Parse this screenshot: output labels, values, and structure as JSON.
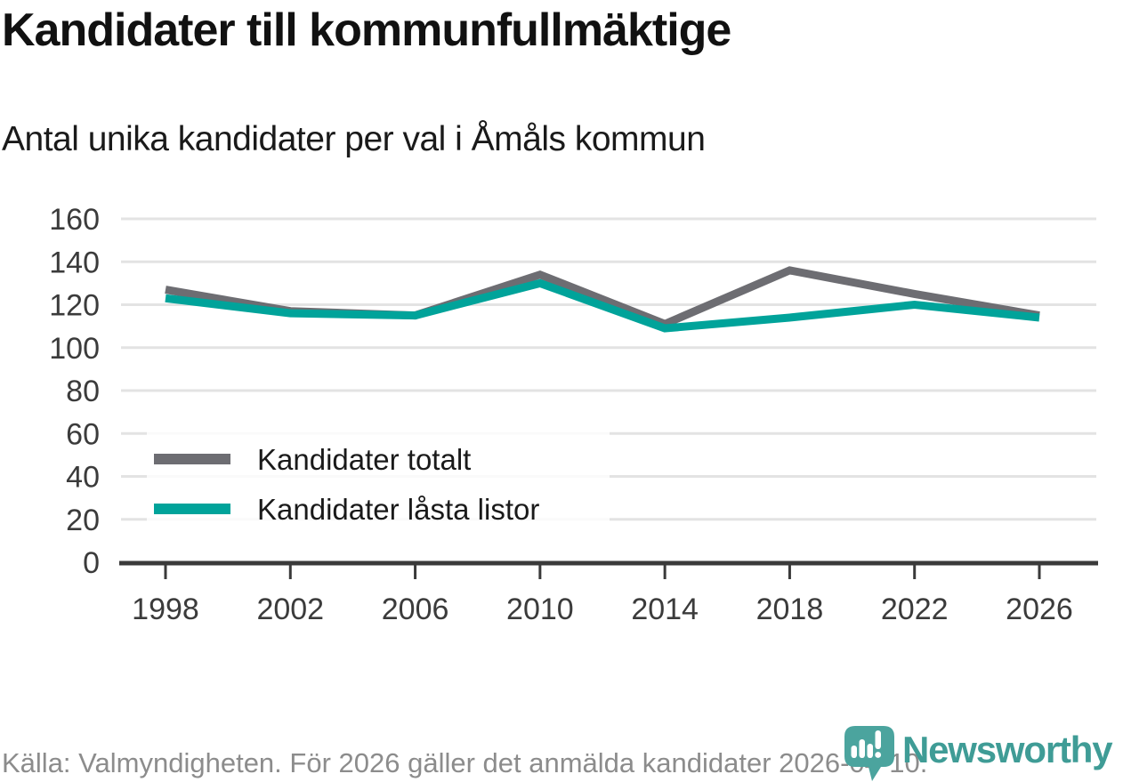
{
  "chart_data": {
    "type": "line",
    "title": "Kandidater till kommunfullmäktige",
    "subtitle": "Antal unika kandidater per val i Åmåls kommun",
    "xlabel": "",
    "ylabel": "",
    "categories": [
      "1998",
      "2002",
      "2006",
      "2010",
      "2014",
      "2018",
      "2022",
      "2026"
    ],
    "series": [
      {
        "name": "Kandidater totalt",
        "color": "#6d6d72",
        "values": [
          127,
          117,
          115,
          134,
          111,
          136,
          125,
          115
        ]
      },
      {
        "name": "Kandidater låsta listor",
        "color": "#00a39a",
        "values": [
          123,
          116,
          115,
          130,
          109,
          114,
          120,
          114
        ]
      }
    ],
    "ylim": [
      0,
      160
    ],
    "yticks": [
      0,
      20,
      40,
      60,
      80,
      100,
      120,
      140,
      160
    ],
    "grid": true,
    "legend_position": "inside-bottom-left",
    "colors": {
      "axis": "#3a3a3a",
      "grid": "#e3e3e3",
      "tick_text": "#3b3b3b"
    }
  },
  "footer": {
    "source": "Källa: Valmyndigheten. För 2026 gäller det anmälda kandidater 2026-04-10.",
    "logo_text": "Newsworthy",
    "logo_color": "#3f9c96",
    "logo_pin_color": "#4ba49e"
  }
}
